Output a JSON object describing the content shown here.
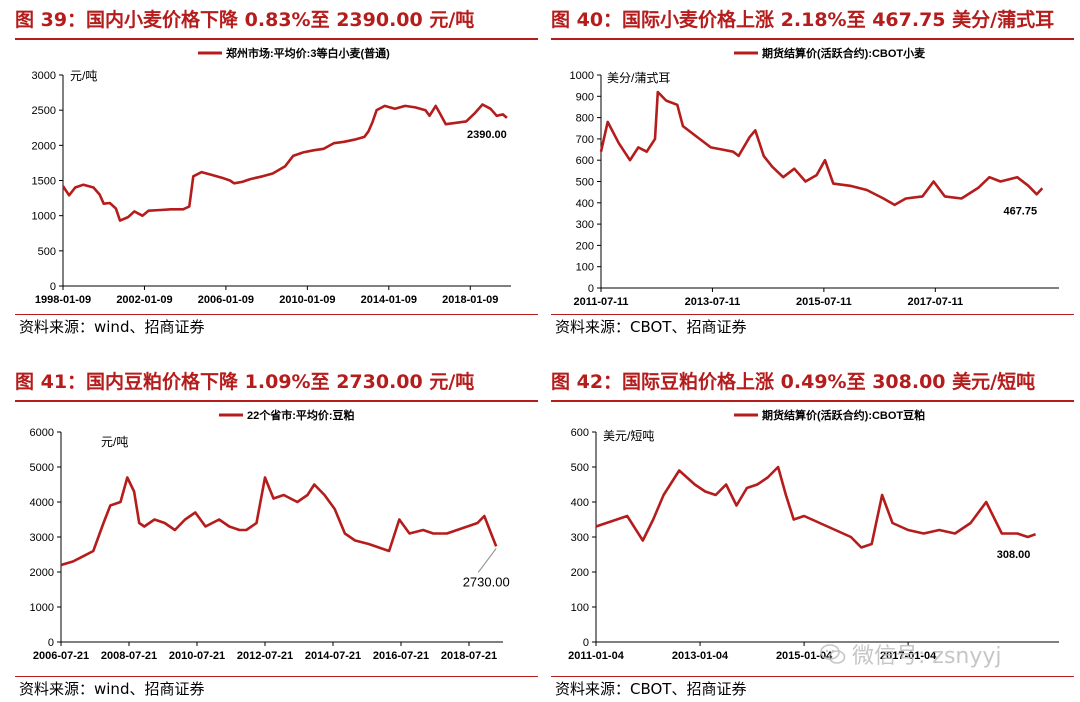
{
  "chart_data": [
    {
      "type": "line",
      "title": "图 39：国内小麦价格下降 0.83%至 2390.00 元/吨",
      "legend": "郑州市场:平均价:3等白小麦(普通)",
      "unit_label": "元/吨",
      "y_ticks": [
        "3000",
        "2500",
        "2000",
        "1500",
        "1000",
        "500",
        "0"
      ],
      "ylim": [
        0,
        3000
      ],
      "x_ticks": [
        "1998-01-09",
        "2002-01-09",
        "2006-01-09",
        "2010-01-09",
        "2014-01-09",
        "2018-01-09"
      ],
      "end_label": "2390.00",
      "source": "资料来源：wind、招商证券",
      "series": [
        {
          "values": [
            [
              1998.0,
              1420
            ],
            [
              1998.3,
              1290
            ],
            [
              1998.6,
              1400
            ],
            [
              1999.0,
              1440
            ],
            [
              1999.5,
              1400
            ],
            [
              1999.8,
              1300
            ],
            [
              2000.0,
              1170
            ],
            [
              2000.3,
              1180
            ],
            [
              2000.6,
              1100
            ],
            [
              2000.8,
              930
            ],
            [
              2001.2,
              980
            ],
            [
              2001.5,
              1060
            ],
            [
              2001.9,
              1000
            ],
            [
              2002.2,
              1070
            ],
            [
              2002.8,
              1080
            ],
            [
              2003.3,
              1090
            ],
            [
              2003.9,
              1090
            ],
            [
              2004.2,
              1130
            ],
            [
              2004.4,
              1560
            ],
            [
              2004.8,
              1620
            ],
            [
              2005.3,
              1580
            ],
            [
              2005.8,
              1540
            ],
            [
              2006.2,
              1500
            ],
            [
              2006.4,
              1460
            ],
            [
              2006.8,
              1480
            ],
            [
              2007.2,
              1520
            ],
            [
              2007.8,
              1560
            ],
            [
              2008.3,
              1600
            ],
            [
              2008.9,
              1700
            ],
            [
              2009.3,
              1850
            ],
            [
              2009.8,
              1900
            ],
            [
              2010.3,
              1930
            ],
            [
              2010.8,
              1950
            ],
            [
              2011.3,
              2030
            ],
            [
              2011.8,
              2050
            ],
            [
              2012.3,
              2080
            ],
            [
              2012.8,
              2120
            ],
            [
              2013.0,
              2200
            ],
            [
              2013.2,
              2330
            ],
            [
              2013.4,
              2500
            ],
            [
              2013.8,
              2560
            ],
            [
              2014.3,
              2520
            ],
            [
              2014.8,
              2560
            ],
            [
              2015.3,
              2540
            ],
            [
              2015.8,
              2500
            ],
            [
              2016.0,
              2420
            ],
            [
              2016.3,
              2560
            ],
            [
              2016.5,
              2460
            ],
            [
              2016.8,
              2300
            ],
            [
              2017.3,
              2320
            ],
            [
              2017.8,
              2340
            ],
            [
              2018.2,
              2450
            ],
            [
              2018.6,
              2580
            ],
            [
              2019.0,
              2520
            ],
            [
              2019.3,
              2420
            ],
            [
              2019.6,
              2440
            ],
            [
              2019.8,
              2390
            ]
          ]
        }
      ]
    },
    {
      "type": "line",
      "title": "图 40：国际小麦价格上涨 2.18%至 467.75 美分/蒲式耳",
      "legend": "期货结算价(活跃合约):CBOT小麦",
      "unit_label": "美分/蒲式耳",
      "y_ticks": [
        "1000",
        "900",
        "800",
        "700",
        "600",
        "500",
        "400",
        "300",
        "200",
        "100",
        "0"
      ],
      "ylim": [
        0,
        1000
      ],
      "x_ticks": [
        "2011-07-11",
        "2013-07-11",
        "2015-07-11",
        "2017-07-11"
      ],
      "end_label": "467.75",
      "source": "资料来源：CBOT、招商证券",
      "series": [
        {
          "values": [
            [
              2011.53,
              640
            ],
            [
              2011.65,
              780
            ],
            [
              2011.85,
              680
            ],
            [
              2012.05,
              600
            ],
            [
              2012.2,
              660
            ],
            [
              2012.35,
              640
            ],
            [
              2012.5,
              700
            ],
            [
              2012.55,
              920
            ],
            [
              2012.7,
              880
            ],
            [
              2012.9,
              860
            ],
            [
              2013.0,
              760
            ],
            [
              2013.2,
              720
            ],
            [
              2013.5,
              660
            ],
            [
              2013.7,
              650
            ],
            [
              2013.9,
              640
            ],
            [
              2014.0,
              620
            ],
            [
              2014.2,
              710
            ],
            [
              2014.3,
              740
            ],
            [
              2014.45,
              620
            ],
            [
              2014.6,
              570
            ],
            [
              2014.8,
              520
            ],
            [
              2015.0,
              560
            ],
            [
              2015.2,
              500
            ],
            [
              2015.4,
              530
            ],
            [
              2015.55,
              600
            ],
            [
              2015.7,
              490
            ],
            [
              2016.0,
              480
            ],
            [
              2016.3,
              460
            ],
            [
              2016.6,
              420
            ],
            [
              2016.8,
              390
            ],
            [
              2017.0,
              420
            ],
            [
              2017.3,
              430
            ],
            [
              2017.5,
              500
            ],
            [
              2017.7,
              430
            ],
            [
              2018.0,
              420
            ],
            [
              2018.3,
              470
            ],
            [
              2018.5,
              520
            ],
            [
              2018.7,
              500
            ],
            [
              2019.0,
              520
            ],
            [
              2019.2,
              480
            ],
            [
              2019.35,
              440
            ],
            [
              2019.45,
              468
            ]
          ]
        }
      ]
    },
    {
      "type": "line",
      "title": "图 41：国内豆粕价格下降 1.09%至 2730.00 元/吨",
      "legend": "22个省市:平均价:豆粕",
      "unit_label": "元/吨",
      "y_ticks": [
        "6000",
        "5000",
        "4000",
        "3000",
        "2000",
        "1000",
        "0"
      ],
      "ylim": [
        0,
        6000
      ],
      "x_ticks": [
        "2006-07-21",
        "2008-07-21",
        "2010-07-21",
        "2012-07-21",
        "2014-07-21",
        "2016-07-21",
        "2018-07-21"
      ],
      "end_label": "2730.00",
      "source": "资料来源：wind、招商证券",
      "series": [
        {
          "values": [
            [
              2006.55,
              2200
            ],
            [
              2006.9,
              2300
            ],
            [
              2007.2,
              2450
            ],
            [
              2007.5,
              2600
            ],
            [
              2007.8,
              3400
            ],
            [
              2008.0,
              3900
            ],
            [
              2008.3,
              4000
            ],
            [
              2008.5,
              4700
            ],
            [
              2008.7,
              4300
            ],
            [
              2008.85,
              3400
            ],
            [
              2009.0,
              3300
            ],
            [
              2009.3,
              3500
            ],
            [
              2009.6,
              3400
            ],
            [
              2009.9,
              3200
            ],
            [
              2010.2,
              3500
            ],
            [
              2010.5,
              3700
            ],
            [
              2010.8,
              3300
            ],
            [
              2011.2,
              3500
            ],
            [
              2011.5,
              3300
            ],
            [
              2011.8,
              3200
            ],
            [
              2012.0,
              3200
            ],
            [
              2012.3,
              3400
            ],
            [
              2012.55,
              4700
            ],
            [
              2012.8,
              4100
            ],
            [
              2013.1,
              4200
            ],
            [
              2013.5,
              4000
            ],
            [
              2013.8,
              4200
            ],
            [
              2014.0,
              4500
            ],
            [
              2014.3,
              4200
            ],
            [
              2014.6,
              3800
            ],
            [
              2014.9,
              3100
            ],
            [
              2015.2,
              2900
            ],
            [
              2015.6,
              2800
            ],
            [
              2015.9,
              2700
            ],
            [
              2016.2,
              2600
            ],
            [
              2016.5,
              3500
            ],
            [
              2016.8,
              3100
            ],
            [
              2017.2,
              3200
            ],
            [
              2017.5,
              3100
            ],
            [
              2017.9,
              3100
            ],
            [
              2018.2,
              3200
            ],
            [
              2018.5,
              3300
            ],
            [
              2018.8,
              3400
            ],
            [
              2019.0,
              3600
            ],
            [
              2019.2,
              3100
            ],
            [
              2019.35,
              2730
            ]
          ]
        }
      ]
    },
    {
      "type": "line",
      "title": "图 42：国际豆粕价格上涨 0.49%至 308.00 美元/短吨",
      "legend": "期货结算价(活跃合约):CBOT豆粕",
      "unit_label": "美元/短吨",
      "y_ticks": [
        "600",
        "500",
        "400",
        "300",
        "200",
        "100",
        "0"
      ],
      "ylim": [
        0,
        600
      ],
      "x_ticks": [
        "2011-01-04",
        "2013-01-04",
        "2015-01-04",
        "2017-01-04"
      ],
      "end_label": "308.00",
      "source": "资料来源：CBOT、招商证券",
      "series": [
        {
          "values": [
            [
              2011.0,
              330
            ],
            [
              2011.6,
              360
            ],
            [
              2011.9,
              290
            ],
            [
              2012.1,
              350
            ],
            [
              2012.3,
              420
            ],
            [
              2012.6,
              490
            ],
            [
              2012.9,
              450
            ],
            [
              2013.1,
              430
            ],
            [
              2013.3,
              420
            ],
            [
              2013.5,
              450
            ],
            [
              2013.7,
              390
            ],
            [
              2013.9,
              440
            ],
            [
              2014.1,
              450
            ],
            [
              2014.3,
              470
            ],
            [
              2014.5,
              500
            ],
            [
              2014.65,
              420
            ],
            [
              2014.8,
              350
            ],
            [
              2015.0,
              360
            ],
            [
              2015.3,
              340
            ],
            [
              2015.6,
              320
            ],
            [
              2015.9,
              300
            ],
            [
              2016.1,
              270
            ],
            [
              2016.3,
              280
            ],
            [
              2016.5,
              420
            ],
            [
              2016.7,
              340
            ],
            [
              2017.0,
              320
            ],
            [
              2017.3,
              310
            ],
            [
              2017.6,
              320
            ],
            [
              2017.9,
              310
            ],
            [
              2018.2,
              340
            ],
            [
              2018.5,
              400
            ],
            [
              2018.8,
              310
            ],
            [
              2019.1,
              310
            ],
            [
              2019.3,
              300
            ],
            [
              2019.45,
              308
            ]
          ]
        }
      ]
    }
  ],
  "watermark": "微信号: zsnyyj"
}
